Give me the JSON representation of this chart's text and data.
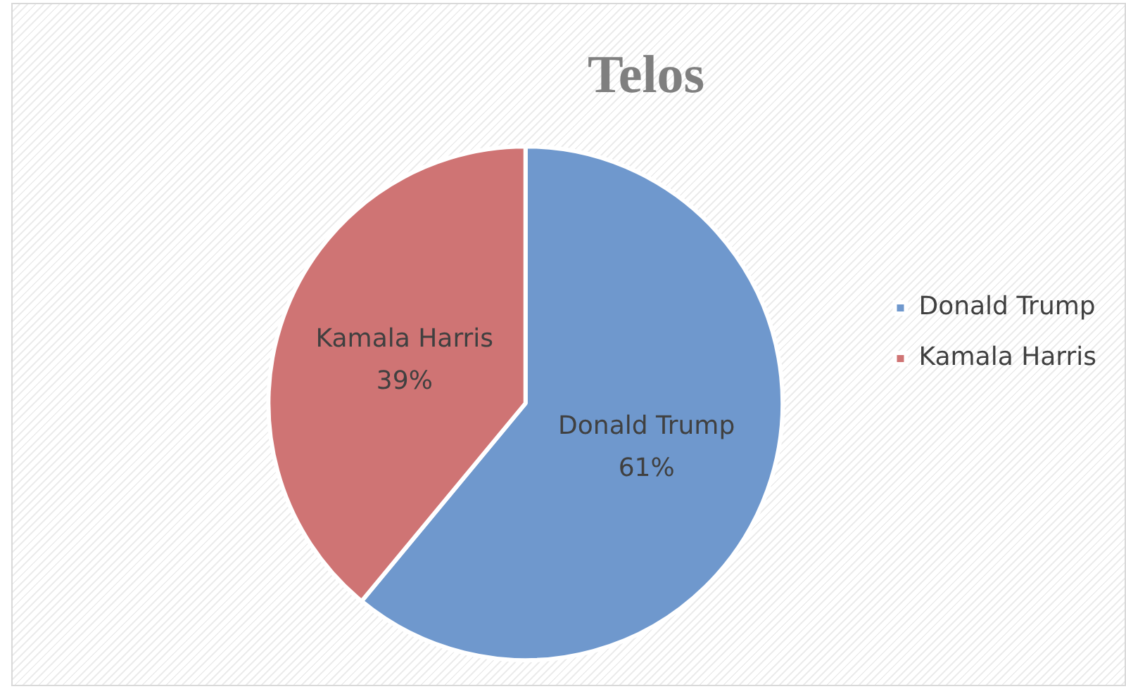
{
  "chart_data": {
    "type": "pie",
    "title": "Telos",
    "categories": [
      "Donald Trump",
      "Kamala Harris"
    ],
    "values": [
      61,
      39
    ],
    "colors": [
      "#6f98cd",
      "#cf7474"
    ],
    "value_labels": [
      "61%",
      "39%"
    ],
    "legend": "right"
  }
}
